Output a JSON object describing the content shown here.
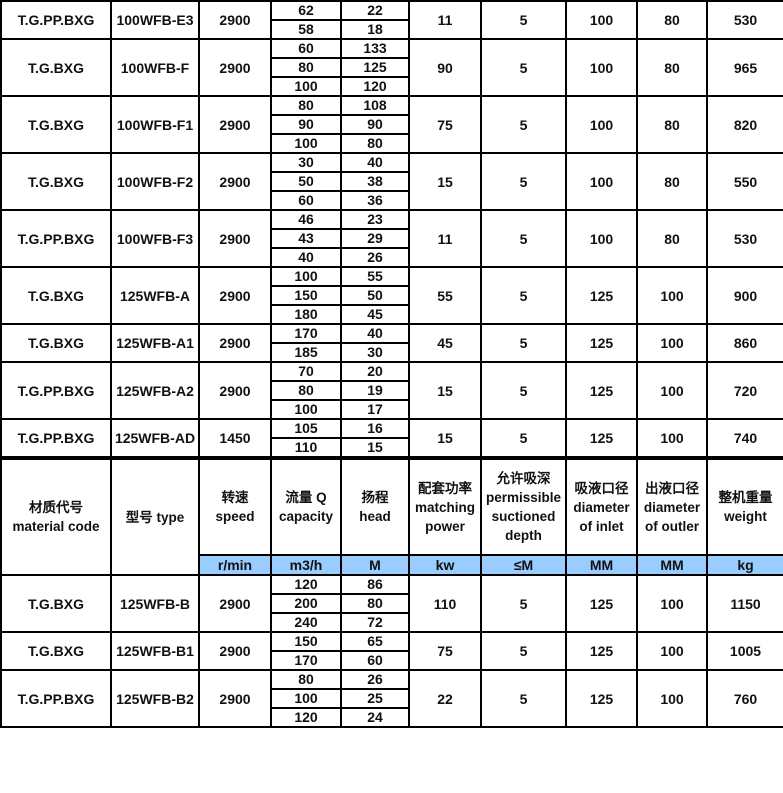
{
  "top_groups": [
    {
      "material": "T.G.PP.BXG",
      "type": "100WFB-E3",
      "speed": "2900",
      "flows": [
        "62",
        "58"
      ],
      "heads": [
        "22",
        "18"
      ],
      "power": "11",
      "depth": "5",
      "inlet": "100",
      "outlet": "80",
      "weight": "530"
    },
    {
      "material": "T.G.BXG",
      "type": "100WFB-F",
      "speed": "2900",
      "flows": [
        "60",
        "80",
        "100"
      ],
      "heads": [
        "133",
        "125",
        "120"
      ],
      "power": "90",
      "depth": "5",
      "inlet": "100",
      "outlet": "80",
      "weight": "965"
    },
    {
      "material": "T.G.BXG",
      "type": "100WFB-F1",
      "speed": "2900",
      "flows": [
        "80",
        "90",
        "100"
      ],
      "heads": [
        "108",
        "90",
        "80"
      ],
      "power": "75",
      "depth": "5",
      "inlet": "100",
      "outlet": "80",
      "weight": "820"
    },
    {
      "material": "T.G.BXG",
      "type": "100WFB-F2",
      "speed": "2900",
      "flows": [
        "30",
        "50",
        "60"
      ],
      "heads": [
        "40",
        "38",
        "36"
      ],
      "power": "15",
      "depth": "5",
      "inlet": "100",
      "outlet": "80",
      "weight": "550"
    },
    {
      "material": "T.G.PP.BXG",
      "type": "100WFB-F3",
      "speed": "2900",
      "flows": [
        "46",
        "43",
        "40"
      ],
      "heads": [
        "23",
        "29",
        "26"
      ],
      "power": "11",
      "depth": "5",
      "inlet": "100",
      "outlet": "80",
      "weight": "530"
    },
    {
      "material": "T.G.BXG",
      "type": "125WFB-A",
      "speed": "2900",
      "flows": [
        "100",
        "150",
        "180"
      ],
      "heads": [
        "55",
        "50",
        "45"
      ],
      "power": "55",
      "depth": "5",
      "inlet": "125",
      "outlet": "100",
      "weight": "900"
    },
    {
      "material": "T.G.BXG",
      "type": "125WFB-A1",
      "speed": "2900",
      "flows": [
        "170",
        "185"
      ],
      "heads": [
        "40",
        "30"
      ],
      "power": "45",
      "depth": "5",
      "inlet": "125",
      "outlet": "100",
      "weight": "860"
    },
    {
      "material": "T.G.PP.BXG",
      "type": "125WFB-A2",
      "speed": "2900",
      "flows": [
        "70",
        "80",
        "100"
      ],
      "heads": [
        "20",
        "19",
        "17"
      ],
      "power": "15",
      "depth": "5",
      "inlet": "125",
      "outlet": "100",
      "weight": "720"
    },
    {
      "material": "T.G.PP.BXG",
      "type": "125WFB-AD",
      "speed": "1450",
      "flows": [
        "105",
        "110"
      ],
      "heads": [
        "16",
        "15"
      ],
      "power": "15",
      "depth": "5",
      "inlet": "125",
      "outlet": "100",
      "weight": "740"
    }
  ],
  "header": {
    "columns": [
      "材质代号 material code",
      "型号 type",
      "转速 speed",
      "流量 Q capacity",
      "扬程 head",
      "配套功率 matching power",
      "允许吸深 permissible suctioned depth",
      "吸液口径 diameter of inlet",
      "出液口径 diameter of outler",
      "整机重量 weight"
    ],
    "units": [
      "r/min",
      "m3/h",
      "M",
      "kw",
      "≤M",
      "MM",
      "MM",
      "kg"
    ],
    "units_color": "#99ccff"
  },
  "bottom_groups": [
    {
      "material": "T.G.BXG",
      "type": "125WFB-B",
      "speed": "2900",
      "flows": [
        "120",
        "200",
        "240"
      ],
      "heads": [
        "86",
        "80",
        "72"
      ],
      "power": "110",
      "depth": "5",
      "inlet": "125",
      "outlet": "100",
      "weight": "1150"
    },
    {
      "material": "T.G.BXG",
      "type": "125WFB-B1",
      "speed": "2900",
      "flows": [
        "150",
        "170"
      ],
      "heads": [
        "65",
        "60"
      ],
      "power": "75",
      "depth": "5",
      "inlet": "125",
      "outlet": "100",
      "weight": "1005"
    },
    {
      "material": "T.G.PP.BXG",
      "type": "125WFB-B2",
      "speed": "2900",
      "flows": [
        "80",
        "100",
        "120"
      ],
      "heads": [
        "26",
        "25",
        "24"
      ],
      "power": "22",
      "depth": "5",
      "inlet": "125",
      "outlet": "100",
      "weight": "760"
    }
  ]
}
